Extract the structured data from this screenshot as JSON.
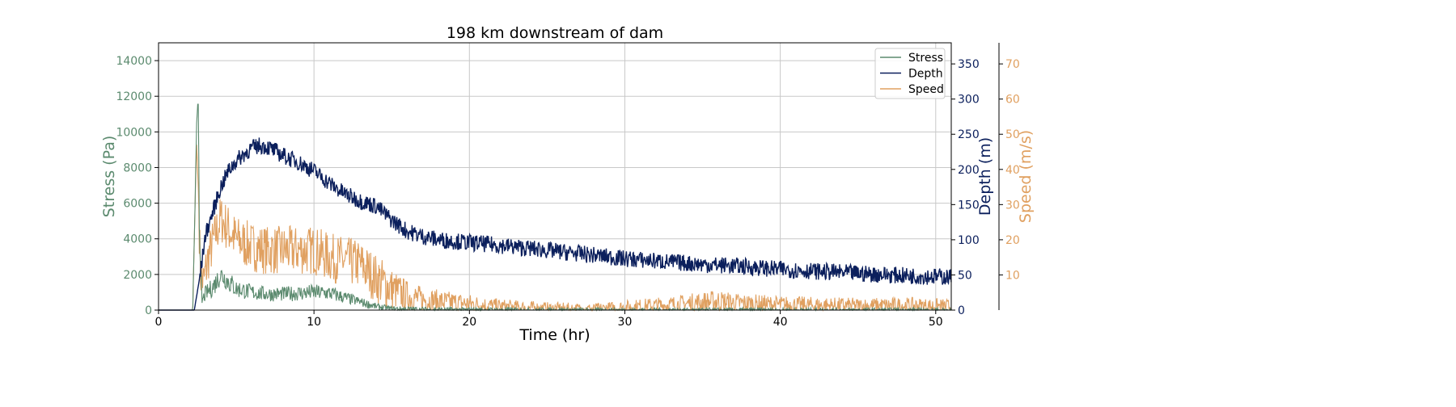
{
  "colors": {
    "stress": "#5b8a6e",
    "depth": "#0b1f5c",
    "speed": "#e0a060",
    "grid": "#c8c8c8"
  },
  "chart_data": {
    "type": "line",
    "title": "198 km downstream of dam",
    "xlabel": "Time (hr)",
    "xlim": [
      0,
      51
    ],
    "x_ticks": [
      0,
      10,
      20,
      30,
      40,
      50
    ],
    "grid": true,
    "legend_position": "top-right",
    "axes": {
      "stress": {
        "label": "Stress (Pa)",
        "ylim": [
          0,
          15000
        ],
        "ticks": [
          0,
          2000,
          4000,
          6000,
          8000,
          10000,
          12000,
          14000
        ]
      },
      "depth": {
        "label": "Depth (m)",
        "ylim": [
          0,
          380
        ],
        "ticks": [
          0,
          50,
          100,
          150,
          200,
          250,
          300,
          350
        ]
      },
      "speed": {
        "label": "Speed (m/s)",
        "ylim": [
          0,
          76
        ],
        "ticks": [
          10,
          20,
          30,
          40,
          50,
          60,
          70
        ]
      }
    },
    "series": [
      {
        "name": "Stress",
        "axis": "stress",
        "x": [
          0,
          2.2,
          2.35,
          2.45,
          2.55,
          2.65,
          2.8,
          3,
          3.5,
          4,
          4.5,
          5,
          5.5,
          6,
          7,
          8,
          9,
          10,
          11,
          12,
          13,
          14,
          15,
          17,
          20,
          25,
          30,
          35,
          40,
          45,
          51
        ],
        "y": [
          0,
          0,
          6000,
          10500,
          12000,
          3000,
          500,
          900,
          1300,
          2000,
          1600,
          1200,
          1100,
          1000,
          900,
          900,
          950,
          1000,
          950,
          700,
          450,
          200,
          80,
          40,
          20,
          10,
          5,
          5,
          5,
          5,
          5
        ],
        "noise": 600
      },
      {
        "name": "Depth",
        "axis": "depth",
        "x": [
          0,
          2.3,
          2.6,
          2.8,
          3,
          3.5,
          4,
          4.5,
          5,
          5.5,
          6,
          6.5,
          7,
          8,
          9,
          10,
          11,
          12,
          13,
          14,
          15,
          16,
          17,
          18,
          20,
          22,
          25,
          28,
          30,
          35,
          37,
          40,
          45,
          48,
          51
        ],
        "y": [
          0,
          0,
          40,
          70,
          105,
          140,
          175,
          198,
          212,
          222,
          230,
          234,
          232,
          220,
          210,
          198,
          180,
          165,
          155,
          148,
          128,
          112,
          105,
          100,
          96,
          92,
          85,
          78,
          73,
          65,
          63,
          58,
          52,
          49,
          47
        ],
        "noise": 12
      },
      {
        "name": "Speed",
        "axis": "speed",
        "x": [
          0,
          2.2,
          2.35,
          2.45,
          2.55,
          2.7,
          2.9,
          3.2,
          4,
          4.5,
          5,
          6,
          7,
          8,
          9,
          10,
          11,
          12,
          13,
          14,
          15,
          16,
          17,
          18,
          20,
          22,
          25,
          28,
          30,
          33,
          36,
          37,
          40,
          45,
          48,
          51
        ],
        "y": [
          0,
          0,
          30,
          47,
          36,
          10,
          8,
          15,
          26,
          23,
          20,
          18,
          17,
          17,
          17,
          17,
          15,
          14,
          13,
          9,
          6,
          4,
          3,
          2.5,
          1.8,
          1,
          0.5,
          0.3,
          0.8,
          1.5,
          2.5,
          2,
          1.5,
          1.2,
          1.3,
          1
        ],
        "noise": 7
      }
    ]
  }
}
